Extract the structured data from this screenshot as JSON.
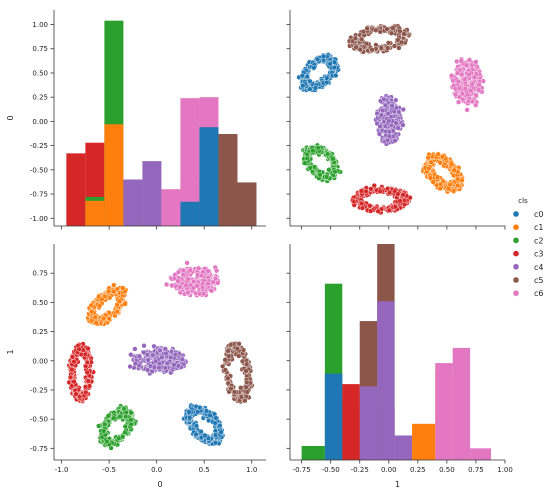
{
  "figure": {
    "legend": {
      "title": "cls",
      "placement": "right",
      "entries": [
        {
          "label": "c0",
          "color": "#1f77b4"
        },
        {
          "label": "c1",
          "color": "#ff7f0e"
        },
        {
          "label": "c2",
          "color": "#2ca02c"
        },
        {
          "label": "c3",
          "color": "#d62728"
        },
        {
          "label": "c4",
          "color": "#9467bd"
        },
        {
          "label": "c5",
          "color": "#8c564b"
        },
        {
          "label": "c6",
          "color": "#e377c2"
        }
      ]
    }
  },
  "chart_data": [
    {
      "panel": "top-left",
      "type": "bar",
      "subtype": "histogram-overlaid",
      "xlabel": "",
      "ylabel": "0",
      "xlim": [
        -1.08,
        1.15
      ],
      "ylim": [
        -1.08,
        1.15
      ],
      "yticks": [
        "-1.00",
        "-0.75",
        "-0.50",
        "-0.25",
        "0.00",
        "0.25",
        "0.50",
        "0.75",
        "1.00"
      ],
      "xticks_shown": false,
      "grid": false,
      "series": [
        {
          "name": "c3",
          "bins": [
            [
              -0.95,
              -0.75,
              -0.33
            ],
            [
              -0.75,
              -0.55,
              -0.22
            ],
            [
              -0.55,
              -0.45,
              -1.0
            ]
          ]
        },
        {
          "name": "c2",
          "bins": [
            [
              -0.75,
              -0.55,
              -0.78
            ],
            [
              -0.55,
              -0.35,
              1.04
            ],
            [
              -0.35,
              -0.15,
              -1.03
            ]
          ]
        },
        {
          "name": "c1",
          "bins": [
            [
              -0.75,
              -0.55,
              -0.82
            ],
            [
              -0.55,
              -0.35,
              -0.03
            ],
            [
              -0.35,
              -0.15,
              -1.04
            ]
          ]
        },
        {
          "name": "c4",
          "bins": [
            [
              -0.35,
              -0.15,
              -0.6
            ],
            [
              -0.15,
              0.05,
              -0.41
            ],
            [
              0.05,
              0.25,
              -0.72
            ],
            [
              0.25,
              0.45,
              -0.6
            ]
          ]
        },
        {
          "name": "c6",
          "bins": [
            [
              0.05,
              0.25,
              -0.7
            ],
            [
              0.25,
              0.45,
              0.24
            ],
            [
              0.45,
              0.65,
              0.25
            ]
          ]
        },
        {
          "name": "c0",
          "bins": [
            [
              0.25,
              0.45,
              -0.83
            ],
            [
              0.45,
              0.65,
              -0.06
            ],
            [
              0.65,
              0.85,
              -1.0
            ]
          ]
        },
        {
          "name": "c5",
          "bins": [
            [
              0.65,
              0.85,
              -0.13
            ],
            [
              0.85,
              1.05,
              -0.63
            ]
          ]
        }
      ]
    },
    {
      "panel": "top-right",
      "type": "scatter",
      "xlabel": "",
      "ylabel": "",
      "xlim": [
        -0.85,
        1.0
      ],
      "ylim": [
        -1.08,
        1.15
      ],
      "ticks_shown": false,
      "clusters": [
        {
          "name": "c0",
          "cx": -0.6,
          "cy": 0.5,
          "rx": 0.12,
          "ry": 0.2,
          "angle": -35,
          "ring": true
        },
        {
          "name": "c1",
          "cx": 0.47,
          "cy": -0.53,
          "rx": 0.12,
          "ry": 0.21,
          "angle": 35,
          "ring": true
        },
        {
          "name": "c2",
          "cx": -0.58,
          "cy": -0.43,
          "rx": 0.12,
          "ry": 0.19,
          "angle": 35,
          "ring": true
        },
        {
          "name": "c3",
          "cx": -0.07,
          "cy": -0.81,
          "rx": 0.24,
          "ry": 0.12,
          "angle": 0,
          "ring": true
        },
        {
          "name": "c4",
          "cx": 0.0,
          "cy": 0.02,
          "rx": 0.1,
          "ry": 0.25,
          "angle": 0,
          "ring": false
        },
        {
          "name": "c5",
          "cx": -0.08,
          "cy": 0.85,
          "rx": 0.25,
          "ry": 0.12,
          "angle": 12,
          "ring": true
        },
        {
          "name": "c6",
          "cx": 0.68,
          "cy": 0.4,
          "rx": 0.13,
          "ry": 0.22,
          "angle": 0,
          "ring": false
        }
      ]
    },
    {
      "panel": "bottom-left",
      "type": "scatter",
      "xlabel": "0",
      "ylabel": "1",
      "xlim": [
        -1.08,
        1.15
      ],
      "ylim": [
        -0.85,
        1.0
      ],
      "xticks": [
        "-1.0",
        "-0.5",
        "0.0",
        "0.5",
        "1.0"
      ],
      "yticks": [
        "-0.75",
        "-0.50",
        "-0.25",
        "0.00",
        "0.25",
        "0.50",
        "0.75"
      ],
      "grid": false,
      "clusters": [
        {
          "name": "c0",
          "cx": 0.5,
          "cy": -0.55,
          "rx": 0.22,
          "ry": 0.12,
          "angle": -35,
          "ring": true
        },
        {
          "name": "c1",
          "cx": -0.52,
          "cy": 0.47,
          "rx": 0.22,
          "ry": 0.11,
          "angle": 35,
          "ring": true
        },
        {
          "name": "c2",
          "cx": -0.42,
          "cy": -0.57,
          "rx": 0.2,
          "ry": 0.12,
          "angle": 35,
          "ring": true
        },
        {
          "name": "c3",
          "cx": -0.8,
          "cy": -0.1,
          "rx": 0.11,
          "ry": 0.24,
          "angle": 0,
          "ring": true
        },
        {
          "name": "c4",
          "cx": 0.03,
          "cy": 0.0,
          "rx": 0.27,
          "ry": 0.1,
          "angle": 0,
          "ring": false
        },
        {
          "name": "c5",
          "cx": 0.85,
          "cy": -0.1,
          "rx": 0.13,
          "ry": 0.25,
          "angle": 12,
          "ring": true
        },
        {
          "name": "c6",
          "cx": 0.4,
          "cy": 0.68,
          "rx": 0.24,
          "ry": 0.12,
          "angle": 0,
          "ring": false
        }
      ]
    },
    {
      "panel": "bottom-right",
      "type": "bar",
      "subtype": "histogram-overlaid",
      "xlabel": "1",
      "ylabel": "",
      "xlim": [
        -0.85,
        1.0
      ],
      "ylim": [
        -0.85,
        1.0
      ],
      "xticks": [
        "-0.75",
        "-0.50",
        "-0.25",
        "0.00",
        "0.25",
        "0.50",
        "0.75",
        "1.00"
      ],
      "yticks_shown": false,
      "grid": false,
      "series": [
        {
          "name": "c2",
          "bins": [
            [
              -0.75,
              -0.55,
              -0.73
            ],
            [
              -0.55,
              -0.4,
              0.66
            ],
            [
              -0.4,
              -0.25,
              -0.27
            ]
          ]
        },
        {
          "name": "c0",
          "bins": [
            [
              -0.55,
              -0.4,
              -0.11
            ],
            [
              -0.4,
              -0.25,
              -0.36
            ]
          ]
        },
        {
          "name": "c5",
          "bins": [
            [
              -0.25,
              -0.1,
              0.34
            ],
            [
              -0.1,
              0.05,
              1.0
            ]
          ]
        },
        {
          "name": "c3",
          "bins": [
            [
              -0.4,
              -0.25,
              -0.2
            ],
            [
              -0.25,
              -0.1,
              -0.26
            ],
            [
              -0.1,
              0.05,
              -0.4
            ]
          ]
        },
        {
          "name": "c4",
          "bins": [
            [
              -0.25,
              -0.1,
              -0.22
            ],
            [
              -0.1,
              0.05,
              0.51
            ],
            [
              0.05,
              0.2,
              -0.64
            ]
          ]
        },
        {
          "name": "c1",
          "bins": [
            [
              0.2,
              0.4,
              -0.54
            ],
            [
              0.4,
              0.55,
              -0.09
            ],
            [
              0.55,
              0.7,
              -0.83
            ]
          ]
        },
        {
          "name": "c6",
          "bins": [
            [
              0.4,
              0.55,
              -0.02
            ],
            [
              0.55,
              0.7,
              0.11
            ],
            [
              0.7,
              0.88,
              -0.75
            ]
          ]
        }
      ]
    }
  ]
}
